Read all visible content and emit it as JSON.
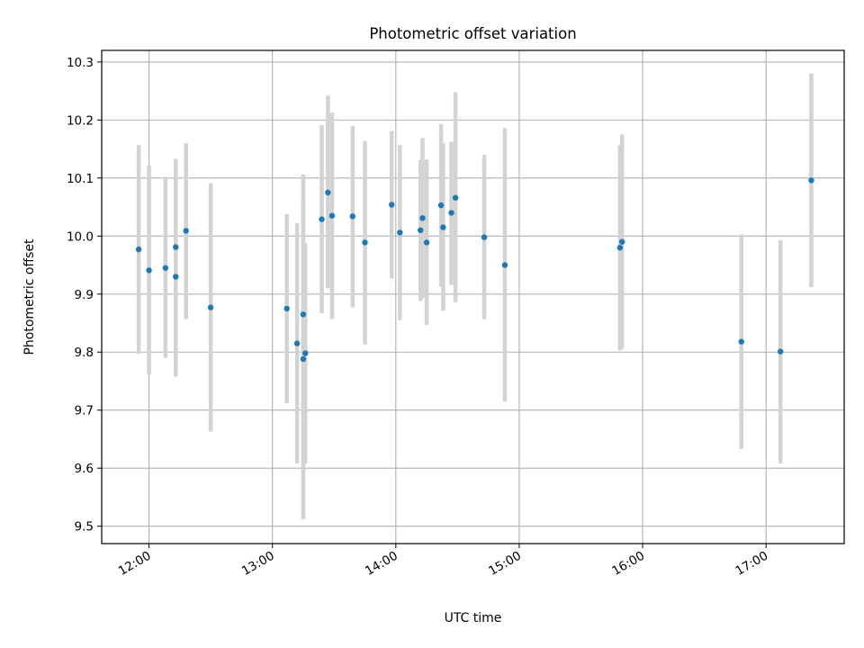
{
  "chart_data": {
    "type": "scatter",
    "title": "Photometric offset variation",
    "xlabel": "UTC time",
    "ylabel": "Photometric offset",
    "xlim": [
      "11:37",
      "17:38"
    ],
    "ylim": [
      9.47,
      10.32
    ],
    "x_ticks": [
      "12:00",
      "13:00",
      "14:00",
      "15:00",
      "16:00",
      "17:00"
    ],
    "y_ticks": [
      9.5,
      9.6,
      9.7,
      9.8,
      9.9,
      10.0,
      10.1,
      10.2,
      10.3
    ],
    "grid": true,
    "legend": "none",
    "colors": {
      "points": "#1f77b4",
      "errorbars": "#d3d3d3",
      "grid": "#b0b0b0"
    },
    "points": [
      {
        "t": "11:55",
        "y": 9.977,
        "lo": 9.797,
        "hi": 10.157
      },
      {
        "t": "12:00",
        "y": 9.941,
        "lo": 9.762,
        "hi": 10.122
      },
      {
        "t": "12:08",
        "y": 9.945,
        "lo": 9.79,
        "hi": 10.102
      },
      {
        "t": "12:13",
        "y": 9.981,
        "lo": 9.81,
        "hi": 10.133
      },
      {
        "t": "12:13",
        "y": 9.93,
        "lo": 9.758,
        "hi": 10.09
      },
      {
        "t": "12:18",
        "y": 10.009,
        "lo": 9.857,
        "hi": 10.16
      },
      {
        "t": "12:30",
        "y": 9.877,
        "lo": 9.663,
        "hi": 10.091
      },
      {
        "t": "13:07",
        "y": 9.875,
        "lo": 9.712,
        "hi": 10.038
      },
      {
        "t": "13:12",
        "y": 9.815,
        "lo": 9.608,
        "hi": 10.022
      },
      {
        "t": "13:15",
        "y": 9.865,
        "lo": 9.61,
        "hi": 10.106
      },
      {
        "t": "13:15",
        "y": 9.788,
        "lo": 9.512,
        "hi": 10.062
      },
      {
        "t": "13:16",
        "y": 9.798,
        "lo": 9.608,
        "hi": 9.988
      },
      {
        "t": "13:24",
        "y": 10.029,
        "lo": 9.867,
        "hi": 10.191
      },
      {
        "t": "13:27",
        "y": 10.075,
        "lo": 9.91,
        "hi": 10.242
      },
      {
        "t": "13:29",
        "y": 10.035,
        "lo": 9.857,
        "hi": 10.213
      },
      {
        "t": "13:39",
        "y": 10.034,
        "lo": 9.877,
        "hi": 10.19
      },
      {
        "t": "13:45",
        "y": 9.989,
        "lo": 9.813,
        "hi": 10.164
      },
      {
        "t": "13:58",
        "y": 10.054,
        "lo": 9.927,
        "hi": 10.181
      },
      {
        "t": "14:02",
        "y": 10.006,
        "lo": 9.855,
        "hi": 10.157
      },
      {
        "t": "14:12",
        "y": 10.01,
        "lo": 9.888,
        "hi": 10.132
      },
      {
        "t": "14:13",
        "y": 10.031,
        "lo": 9.893,
        "hi": 10.169
      },
      {
        "t": "14:15",
        "y": 9.989,
        "lo": 9.847,
        "hi": 10.132
      },
      {
        "t": "14:22",
        "y": 10.053,
        "lo": 9.913,
        "hi": 10.193
      },
      {
        "t": "14:23",
        "y": 10.015,
        "lo": 9.871,
        "hi": 10.16
      },
      {
        "t": "14:27",
        "y": 10.04,
        "lo": 9.916,
        "hi": 10.163
      },
      {
        "t": "14:29",
        "y": 10.066,
        "lo": 9.886,
        "hi": 10.248
      },
      {
        "t": "14:43",
        "y": 9.998,
        "lo": 9.857,
        "hi": 10.14
      },
      {
        "t": "14:53",
        "y": 9.95,
        "lo": 9.715,
        "hi": 10.186
      },
      {
        "t": "15:49",
        "y": 9.98,
        "lo": 9.803,
        "hi": 10.157
      },
      {
        "t": "15:50",
        "y": 9.99,
        "lo": 9.806,
        "hi": 10.175
      },
      {
        "t": "16:48",
        "y": 9.818,
        "lo": 9.633,
        "hi": 10.003
      },
      {
        "t": "17:07",
        "y": 9.801,
        "lo": 9.608,
        "hi": 9.993
      },
      {
        "t": "17:22",
        "y": 10.096,
        "lo": 9.912,
        "hi": 10.28
      }
    ]
  }
}
